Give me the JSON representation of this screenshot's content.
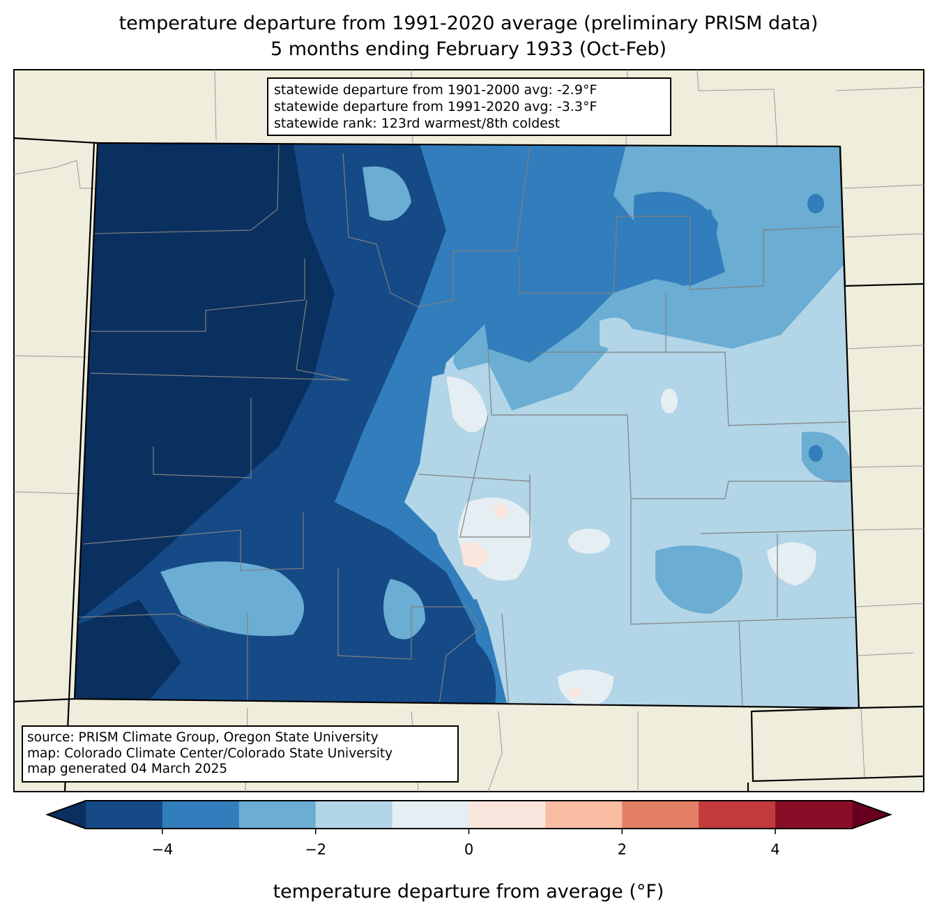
{
  "title": {
    "line1": "temperature departure from 1991-2020 average (preliminary PRISM data)",
    "line2": "5 months ending February 1933 (Oct-Feb)"
  },
  "stats": {
    "line1": "statewide departure from 1901-2000 avg: -2.9°F",
    "line2": "statewide departure from 1991-2020 avg: -3.3°F",
    "line3": "statewide rank: 123rd warmest/8th coldest"
  },
  "source": {
    "line1": "source: PRISM Climate Group, Oregon State University",
    "line2": "map: Colorado Climate Center/Colorado State University",
    "line3": "map generated 04 March 2025"
  },
  "colorbar": {
    "label": "temperature departure from average (°F)",
    "levels": [
      -5,
      -4,
      -3,
      -2,
      -1,
      0,
      1,
      2,
      3,
      4,
      5
    ],
    "colors": [
      "#154a87",
      "#327ebc",
      "#6badd3",
      "#b2d5e7",
      "#e5eef3",
      "#fae6dc",
      "#f9bda3",
      "#e47f67",
      "#c23a3b",
      "#890d27"
    ],
    "under_color": "#0a3060",
    "over_color": "#67001f",
    "ticks": [
      {
        "value": -4,
        "label": "−4"
      },
      {
        "value": -2,
        "label": "−2"
      },
      {
        "value": 0,
        "label": "0"
      },
      {
        "value": 2,
        "label": "2"
      },
      {
        "value": 4,
        "label": "4"
      }
    ]
  },
  "map_colors": {
    "land": "#efeddb",
    "county_line": "#808080",
    "state_line": "#000000"
  }
}
